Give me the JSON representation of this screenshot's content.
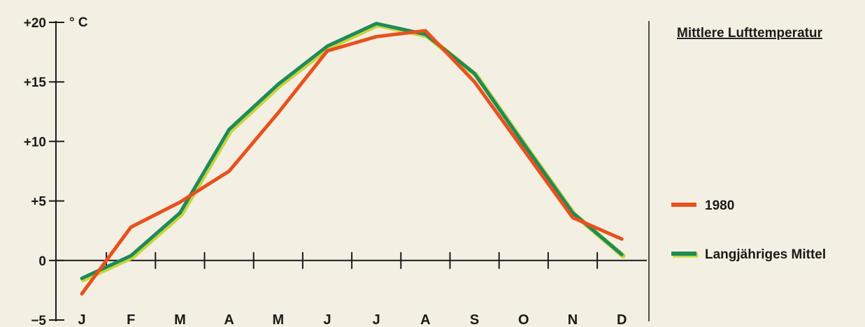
{
  "chart_data": {
    "type": "line",
    "title": "Mittlere Lufttemperatur",
    "y_unit": "° C",
    "categories": [
      "J",
      "F",
      "M",
      "A",
      "M",
      "J",
      "J",
      "A",
      "S",
      "O",
      "N",
      "D"
    ],
    "ylim": [
      -5,
      20
    ],
    "y_ticks": [
      20,
      15,
      10,
      5,
      0,
      -5
    ],
    "y_tick_labels": [
      "+20",
      "+15",
      "+10",
      "+5",
      "0",
      "−5"
    ],
    "grid": false,
    "legend_position": "right",
    "series": [
      {
        "name": "1980",
        "color": "#e8501e",
        "values": [
          -2.8,
          2.8,
          4.9,
          7.5,
          12.4,
          17.6,
          18.8,
          19.3,
          15.0,
          9.3,
          3.6,
          1.8
        ]
      },
      {
        "name": "Langjähriges Mittel",
        "color": "#1f8a5a",
        "values": [
          -1.5,
          0.4,
          4.0,
          11.0,
          14.8,
          18.0,
          19.9,
          19.0,
          15.7,
          9.8,
          4.0,
          0.5
        ]
      }
    ]
  }
}
